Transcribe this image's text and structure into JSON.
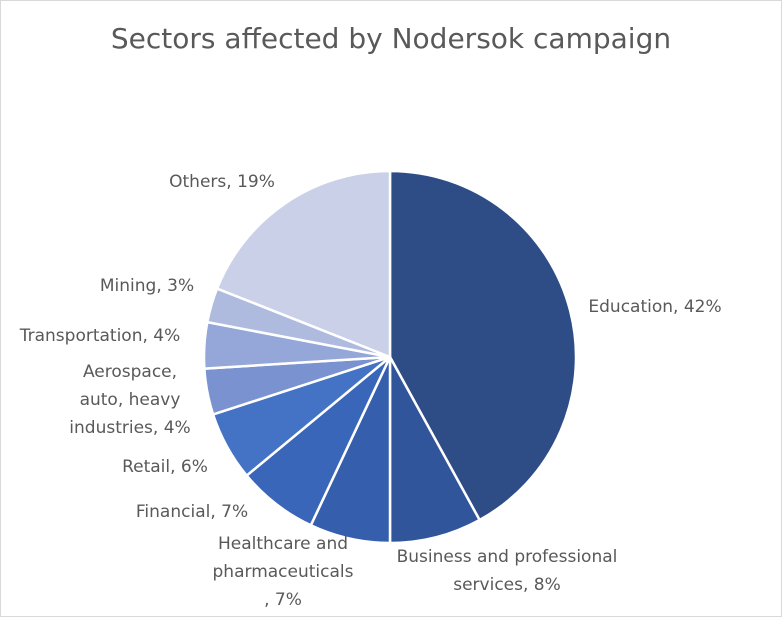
{
  "chart_data": {
    "type": "pie",
    "title": "Sectors affected by Nodersok campaign",
    "values": [
      42,
      8,
      7,
      7,
      6,
      4,
      4,
      3,
      19
    ],
    "value_labels": [
      "Education, 42%",
      "Business and professional services, 8%",
      "Healthcare and pharmaceuticals , 7%",
      "Financial, 7%",
      "Retail, 6%",
      "Aerospace, auto, heavy industries, 4%",
      "Transportation, 4%",
      "Mining, 3%",
      "Others, 19%"
    ],
    "colors": [
      "#2e4c86",
      "#30559b",
      "#355ead",
      "#3a66b9",
      "#4472c4",
      "#7a92d0",
      "#95a7d8",
      "#aebbdf",
      "#c9d0e8"
    ]
  }
}
